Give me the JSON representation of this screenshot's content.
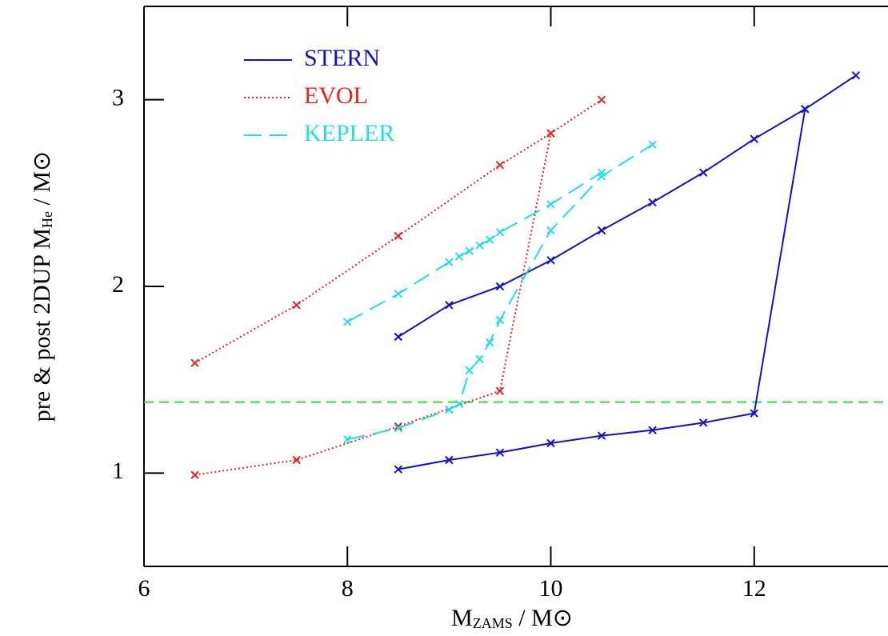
{
  "chart_data": {
    "type": "line",
    "xlabel": {
      "main": "M",
      "sub": "ZAMS",
      "rest": " / M⊙"
    },
    "ylabel": {
      "main": "pre & post 2DUP M",
      "sub": "He",
      "rest": " / M⊙"
    },
    "xlim": [
      6,
      13.3
    ],
    "xticks": [
      6,
      8,
      10,
      12
    ],
    "ylim": [
      0.5,
      3.5
    ],
    "yticks": [
      1,
      2,
      3
    ],
    "legend": "upper left",
    "series": [
      {
        "name": "STERN",
        "color": "#1010d0",
        "style": "solid",
        "x": [
          8.5,
          9,
          9.5,
          10,
          10.5,
          11,
          11.5,
          12,
          12.5,
          13,
          null,
          8.5,
          9,
          9.5,
          10,
          10.5,
          11,
          11.5,
          12,
          12.5
        ],
        "values": [
          1.02,
          1.07,
          1.11,
          1.16,
          1.2,
          1.23,
          1.27,
          1.32,
          2.95,
          3.13,
          null,
          1.73,
          1.9,
          2.0,
          2.14,
          2.3,
          2.45,
          2.61,
          2.79,
          2.95
        ]
      },
      {
        "name": "EVOL",
        "color": "#e82020",
        "style": "dotted",
        "x": [
          6.5,
          7.5,
          8.5,
          9.5,
          10,
          10.5,
          null,
          6.5,
          7.5,
          8.5,
          9.5,
          10
        ],
        "values": [
          0.99,
          1.07,
          1.25,
          1.44,
          2.82,
          3.0,
          null,
          1.59,
          1.9,
          2.27,
          2.65,
          2.82
        ]
      },
      {
        "name": "KEPLER",
        "color": "#20e0e0",
        "style": "dashed",
        "x": [
          8,
          8.5,
          9,
          9.1,
          9.2,
          9.3,
          9.4,
          9.5,
          10,
          10.5,
          11,
          null,
          8,
          8.5,
          9,
          9.1,
          9.2,
          9.3,
          9.4,
          9.5,
          10,
          10.5
        ],
        "values": [
          1.18,
          1.24,
          1.34,
          1.37,
          1.55,
          1.61,
          1.7,
          1.82,
          2.3,
          2.59,
          2.76,
          null,
          1.81,
          1.96,
          2.13,
          2.16,
          2.19,
          2.22,
          2.25,
          2.29,
          2.44,
          2.61
        ]
      }
    ],
    "hlines": [
      {
        "value": 1.38,
        "color": "#33dd33"
      }
    ]
  }
}
